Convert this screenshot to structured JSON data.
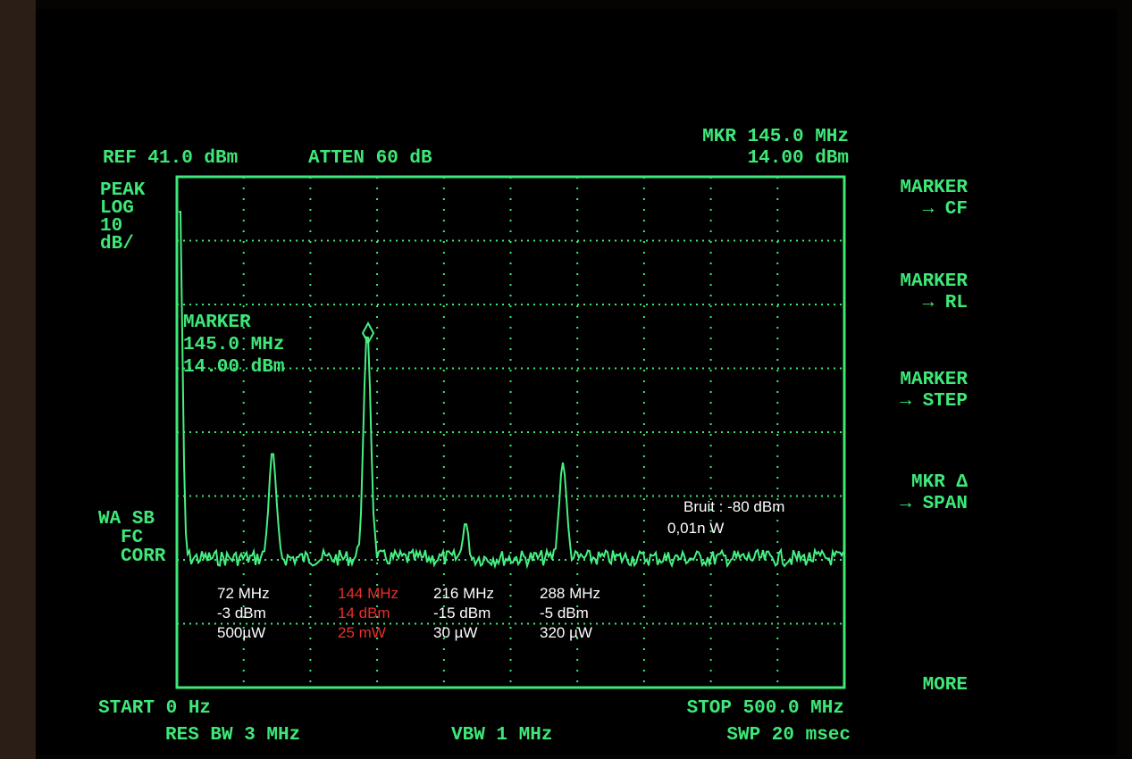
{
  "header": {
    "ref": "REF 41.0 dBm",
    "atten": "ATTEN 60 dB",
    "marker_freq": "MKR 145.0 MHz",
    "marker_level": "14.00 dBm"
  },
  "left_labels": {
    "top": [
      "PEAK",
      "LOG",
      "10",
      "dB/"
    ],
    "bottom": [
      "WA SB",
      "FC",
      "CORR"
    ]
  },
  "softkeys": [
    [
      "MARKER",
      "→ CF"
    ],
    [
      "MARKER",
      "→ RL"
    ],
    [
      "MARKER",
      "→ STEP"
    ],
    [
      "MKR Δ",
      "→ SPAN"
    ],
    [
      "MORE"
    ]
  ],
  "marker_box": [
    "MARKER",
    "145.0 MHz",
    "14.00 dBm"
  ],
  "annotations": [
    [
      "72 MHz",
      "-3 dBm",
      "500µW"
    ],
    [
      "144 MHz",
      "14 dBm",
      "25 mW"
    ],
    [
      "216 MHz",
      "-15 dBm",
      "30 µW"
    ],
    [
      "288 MHz",
      "-5 dBm",
      "320 µW"
    ]
  ],
  "noise": [
    "Bruit : -80 dBm",
    "0,01n W"
  ],
  "footer": {
    "start": "START 0 Hz",
    "res_bw": "RES BW 3 MHz",
    "vbw": "VBW 1 MHz",
    "stop": "STOP 500.0 MHz",
    "sweep": "SWP 20 msec"
  }
}
